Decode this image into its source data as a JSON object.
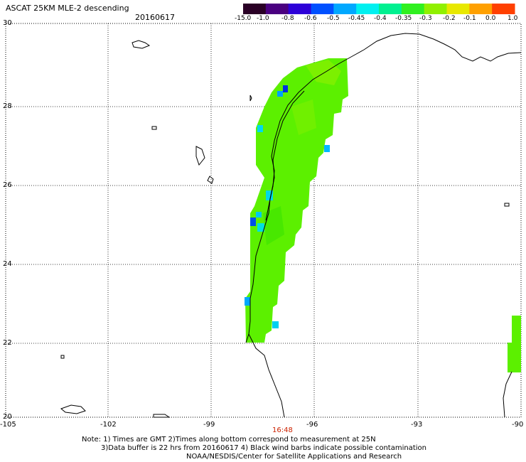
{
  "header": {
    "title": "ASCAT 25KM MLE-2 descending",
    "date": "20160617"
  },
  "colorbar": {
    "labels": [
      "-15.0",
      "-1.0",
      "-0.8",
      "-0.6",
      "-0.5",
      "-0.45",
      "-0.4",
      "-0.35",
      "-0.3",
      "-0.2",
      "-0.1",
      "0.0",
      "1.0"
    ],
    "colors": [
      "#2a0026",
      "#4a0080",
      "#2d00d8",
      "#0050ff",
      "#00a8ff",
      "#00f0f0",
      "#00f090",
      "#30f020",
      "#90f000",
      "#e8e800",
      "#ffa000",
      "#ff4000"
    ]
  },
  "map": {
    "lat_labels": [
      "30",
      "28",
      "26",
      "24",
      "22",
      "20"
    ],
    "lon_labels": [
      "-105",
      "-102",
      "-99",
      "-96",
      "-93",
      "-90"
    ],
    "time_label": "16:48"
  },
  "footer": {
    "line1": "Note: 1) Times are GMT 2)Times along bottom correspond to measurement at 25N",
    "line2": "3)Data buffer is 22 hrs from 20160617 4) Black wind barbs indicate possible contamination",
    "line3": "NOAA/NESDIS/Center for Satellite Applications and Research"
  }
}
